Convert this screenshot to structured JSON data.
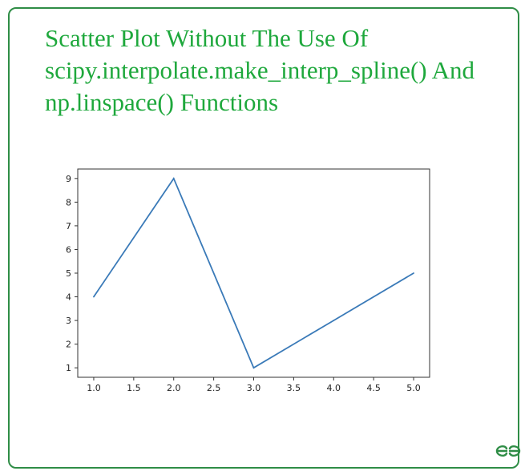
{
  "heading": {
    "line1": "Scatter Plot Without The Use Of",
    "line2": "scipy.interpolate.make_interp_spline() And",
    "line3": "np.linspace() Functions"
  },
  "logo_text": "GG",
  "colors": {
    "heading": "#1ea83c",
    "border": "#2f8d46",
    "line": "#3a7ab8"
  },
  "chart_data": {
    "type": "line",
    "title": "",
    "xlabel": "",
    "ylabel": "",
    "x": [
      1,
      2,
      3,
      4,
      5
    ],
    "series": [
      {
        "values": [
          4,
          9,
          1,
          3,
          5
        ]
      }
    ],
    "xlim": [
      0.8,
      5.2
    ],
    "ylim": [
      0.6,
      9.4
    ],
    "xticks": [
      1.0,
      1.5,
      2.0,
      2.5,
      3.0,
      3.5,
      4.0,
      4.5,
      5.0
    ],
    "xtick_labels": [
      "1.0",
      "1.5",
      "2.0",
      "2.5",
      "3.0",
      "3.5",
      "4.0",
      "4.5",
      "5.0"
    ],
    "yticks": [
      1,
      2,
      3,
      4,
      5,
      6,
      7,
      8,
      9
    ],
    "ytick_labels": [
      "1",
      "2",
      "3",
      "4",
      "5",
      "6",
      "7",
      "8",
      "9"
    ],
    "grid": false,
    "legend": false
  }
}
